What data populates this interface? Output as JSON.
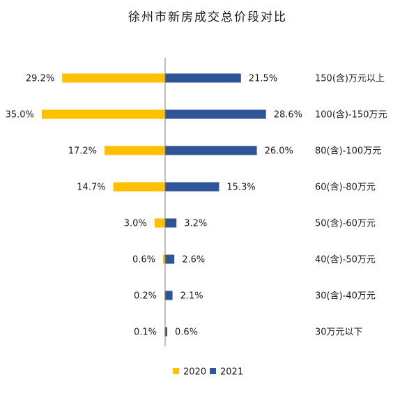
{
  "chart_data": {
    "type": "bar",
    "orientation": "horizontal-diverging",
    "title": "徐州市新房成交总价段对比",
    "categories": [
      "150(含)万元以上",
      "100(含)-150万元",
      "80(含)-100万元",
      "60(含)-80万元",
      "50(含)-60万元",
      "40(含)-50万元",
      "30(含)-40万元",
      "30万元以下"
    ],
    "series": [
      {
        "name": "2020",
        "values": [
          29.2,
          35.0,
          17.2,
          14.7,
          3.0,
          0.6,
          0.2,
          0.1
        ],
        "labels": [
          "29.2%",
          "35.0%",
          "17.2%",
          "14.7%",
          "3.0%",
          "0.6%",
          "0.2%",
          "0.1%"
        ],
        "color": "#FFC000"
      },
      {
        "name": "2021",
        "values": [
          21.5,
          28.6,
          26.0,
          15.3,
          3.2,
          2.6,
          2.1,
          0.6
        ],
        "labels": [
          "21.5%",
          "28.6%",
          "26.0%",
          "15.3%",
          "3.2%",
          "2.6%",
          "2.1%",
          "0.6%"
        ],
        "color": "#2F5597"
      }
    ],
    "unit": "%",
    "legend_position": "bottom",
    "grid": false
  }
}
